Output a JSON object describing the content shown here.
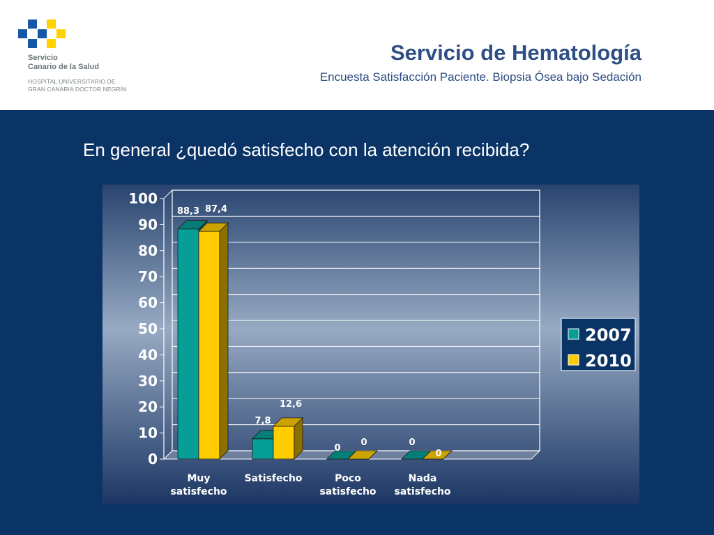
{
  "header": {
    "title": "Servicio de Hematología",
    "subtitle": "Encuesta Satisfacción Paciente. Biopsia Ósea bajo Sedación",
    "logo": {
      "name_line1": "Servicio",
      "name_line2": "Canario de la Salud",
      "hospital_line1": "HOSPITAL UNIVERSITARIO DE",
      "hospital_line2": "GRAN CANARIA DOCTOR NEGRÍN"
    }
  },
  "question": "En general ¿quedó satisfecho con la atención recibida?",
  "colors": {
    "band": "#0b3466",
    "series_2007": "#069e96",
    "series_2010": "#ffcc00",
    "title": "#2e4f86",
    "logo_blue": "#1558a6",
    "logo_yellow": "#ffd200"
  },
  "chart_data": {
    "type": "bar",
    "categories": [
      [
        "Muy",
        "satisfecho"
      ],
      [
        "Satisfecho"
      ],
      [
        "Poco",
        "satisfecho"
      ],
      [
        "Nada",
        "satisfecho"
      ]
    ],
    "series": [
      {
        "name": "2007",
        "values": [
          88.3,
          7.8,
          0,
          0
        ],
        "labels": [
          "88,3",
          "7,8",
          "0",
          "0"
        ],
        "color": "#069e96"
      },
      {
        "name": "2010",
        "values": [
          87.4,
          12.6,
          0,
          0
        ],
        "labels": [
          "87,4",
          "12,6",
          "0",
          "0"
        ],
        "color": "#ffcc00"
      }
    ],
    "ylim": [
      0,
      100
    ],
    "yticks": [
      0,
      10,
      20,
      30,
      40,
      50,
      60,
      70,
      80,
      90,
      100
    ],
    "grid": true,
    "legend_position": "right",
    "style": "3d-bar"
  }
}
